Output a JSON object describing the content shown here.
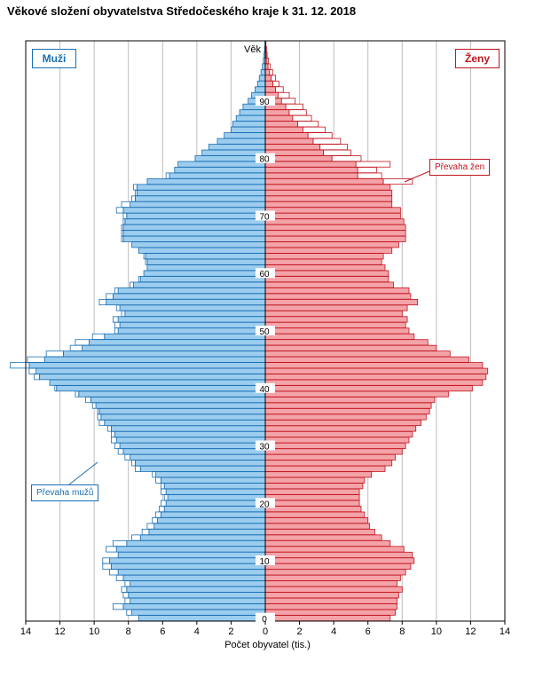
{
  "title": "Věkové složení obyvatelstva Středočeského kraje k 31. 12. 2018",
  "chart_data": {
    "type": "population-pyramid",
    "xlabel": "Počet obyvatel (tis.)",
    "ylabel": "Věk",
    "x_ticks": [
      "14",
      "12",
      "10",
      "8",
      "6",
      "4",
      "2",
      "0",
      "2",
      "4",
      "6",
      "8",
      "10",
      "12",
      "14"
    ],
    "x_range": [
      0,
      14
    ],
    "age_ticks": [
      0,
      10,
      20,
      30,
      40,
      50,
      60,
      70,
      80,
      90
    ],
    "age_range": [
      0,
      100
    ],
    "legend": {
      "men": "Muži",
      "women": "Ženy"
    },
    "annotations": {
      "men_surplus": "Převaha mužů",
      "women_surplus": "Převaha žen"
    },
    "colors": {
      "men": "#9ccdef",
      "men_stroke": "#1a6fb3",
      "women": "#f4a3a8",
      "women_stroke": "#c0151f",
      "surplus_fill": "#ffffff",
      "grid": "#bdbdbd"
    },
    "ages": [
      0,
      1,
      2,
      3,
      4,
      5,
      6,
      7,
      8,
      9,
      10,
      11,
      12,
      13,
      14,
      15,
      16,
      17,
      18,
      19,
      20,
      21,
      22,
      23,
      24,
      25,
      26,
      27,
      28,
      29,
      30,
      31,
      32,
      33,
      34,
      35,
      36,
      37,
      38,
      39,
      40,
      41,
      42,
      43,
      44,
      45,
      46,
      47,
      48,
      49,
      50,
      51,
      52,
      53,
      54,
      55,
      56,
      57,
      58,
      59,
      60,
      61,
      62,
      63,
      64,
      65,
      66,
      67,
      68,
      69,
      70,
      71,
      72,
      73,
      74,
      75,
      76,
      77,
      78,
      79,
      80,
      81,
      82,
      83,
      84,
      85,
      86,
      87,
      88,
      89,
      90,
      91,
      92,
      93,
      94,
      95,
      96,
      97,
      98,
      99,
      100
    ],
    "men": [
      7.4,
      7.8,
      8.3,
      7.9,
      8.0,
      8.1,
      7.9,
      8.3,
      8.6,
      9.0,
      9.1,
      8.6,
      8.7,
      8.1,
      7.3,
      6.8,
      6.5,
      6.3,
      6.1,
      5.9,
      5.8,
      5.7,
      5.8,
      5.9,
      6.1,
      6.4,
      7.3,
      7.6,
      7.9,
      8.3,
      8.5,
      8.7,
      8.8,
      9.0,
      9.4,
      9.6,
      9.7,
      9.9,
      10.2,
      10.9,
      12.2,
      12.6,
      13.2,
      13.4,
      13.8,
      12.9,
      11.8,
      10.7,
      10.3,
      9.4,
      8.6,
      8.5,
      8.6,
      8.2,
      8.5,
      9.3,
      8.9,
      8.6,
      7.7,
      7.3,
      7.1,
      6.9,
      6.9,
      7.0,
      7.4,
      7.8,
      8.3,
      8.3,
      8.3,
      8.2,
      8.1,
      8.3,
      7.9,
      7.6,
      7.5,
      7.5,
      6.9,
      5.6,
      5.3,
      5.1,
      4.1,
      3.7,
      3.3,
      2.8,
      2.4,
      2.0,
      1.9,
      1.7,
      1.5,
      1.3,
      1.0,
      0.8,
      0.6,
      0.45,
      0.35,
      0.25,
      0.17,
      0.11,
      0.07,
      0.04,
      0.02
    ],
    "women": [
      7.3,
      7.6,
      7.7,
      7.7,
      7.8,
      8.0,
      7.7,
      7.9,
      8.2,
      8.5,
      8.7,
      8.6,
      8.1,
      7.3,
      6.8,
      6.4,
      6.1,
      6.0,
      5.8,
      5.6,
      5.5,
      5.5,
      5.5,
      5.7,
      5.8,
      6.2,
      7.0,
      7.4,
      7.6,
      8.0,
      8.2,
      8.4,
      8.6,
      8.8,
      9.1,
      9.4,
      9.6,
      9.7,
      9.9,
      10.7,
      12.1,
      12.7,
      12.9,
      13.0,
      12.7,
      11.9,
      10.8,
      10.0,
      9.5,
      8.7,
      8.4,
      8.2,
      8.3,
      8.0,
      8.3,
      8.9,
      8.5,
      8.4,
      7.5,
      7.2,
      7.2,
      7.0,
      6.8,
      6.9,
      7.4,
      7.8,
      8.2,
      8.2,
      8.2,
      8.1,
      7.9,
      7.9,
      7.4,
      7.4,
      7.4,
      7.3,
      6.9,
      5.4,
      5.4,
      5.3,
      3.9,
      3.4,
      3.2,
      2.8,
      2.5,
      2.2,
      1.9,
      1.6,
      1.4,
      1.2,
      0.95,
      0.75,
      0.6,
      0.45,
      0.35,
      0.25,
      0.16,
      0.1,
      0.06,
      0.04,
      0.02
    ],
    "men_surplus": [
      0.0,
      0.3,
      0.6,
      0.3,
      0.3,
      0.3,
      0.3,
      0.4,
      0.5,
      0.5,
      0.4,
      0.0,
      0.6,
      0.8,
      0.5,
      0.4,
      0.4,
      0.3,
      0.3,
      0.3,
      0.3,
      0.2,
      0.3,
      0.2,
      0.3,
      0.2,
      0.3,
      0.2,
      0.3,
      0.3,
      0.3,
      0.3,
      0.2,
      0.2,
      0.3,
      0.2,
      0.1,
      0.2,
      0.3,
      0.2,
      0.1,
      0.0,
      0.3,
      0.4,
      1.1,
      1.0,
      1.0,
      0.7,
      0.8,
      0.7,
      0.2,
      0.3,
      0.3,
      0.2,
      0.2,
      0.4,
      0.4,
      0.2,
      0.2,
      0.1,
      0.0,
      0.0,
      0.1,
      0.1,
      0.0,
      0.0,
      0.1,
      0.1,
      0.1,
      0.1,
      0.2,
      0.4,
      0.5,
      0.2,
      0.1,
      0.2,
      0.0,
      0.2,
      0.0,
      0,
      0,
      0,
      0,
      0,
      0,
      0,
      0,
      0,
      0,
      0,
      0,
      0,
      0,
      0,
      0,
      0,
      0,
      0,
      0,
      0,
      0
    ],
    "women_surplus": [
      0,
      0,
      0,
      0,
      0,
      0,
      0,
      0,
      0,
      0,
      0,
      0,
      0,
      0,
      0,
      0,
      0,
      0,
      0,
      0,
      0,
      0,
      0,
      0,
      0,
      0,
      0,
      0,
      0,
      0,
      0,
      0,
      0,
      0,
      0,
      0,
      0,
      0,
      0,
      0,
      0,
      0,
      0,
      0,
      0,
      0,
      0,
      0,
      0,
      0,
      0,
      0,
      0,
      0,
      0,
      0,
      0,
      0,
      0,
      0,
      0,
      0,
      0,
      0,
      0,
      0,
      0,
      0,
      0,
      0,
      0,
      0,
      0,
      0,
      0,
      0,
      1.7,
      1.4,
      1.1,
      2.0,
      1.7,
      1.6,
      1.6,
      1.6,
      1.4,
      1.3,
      1.2,
      1.1,
      1.0,
      1.0,
      0.8,
      0.65,
      0.45,
      0.35,
      0.25,
      0.18,
      0.12,
      0.08,
      0.05,
      0.03,
      0.02
    ]
  }
}
